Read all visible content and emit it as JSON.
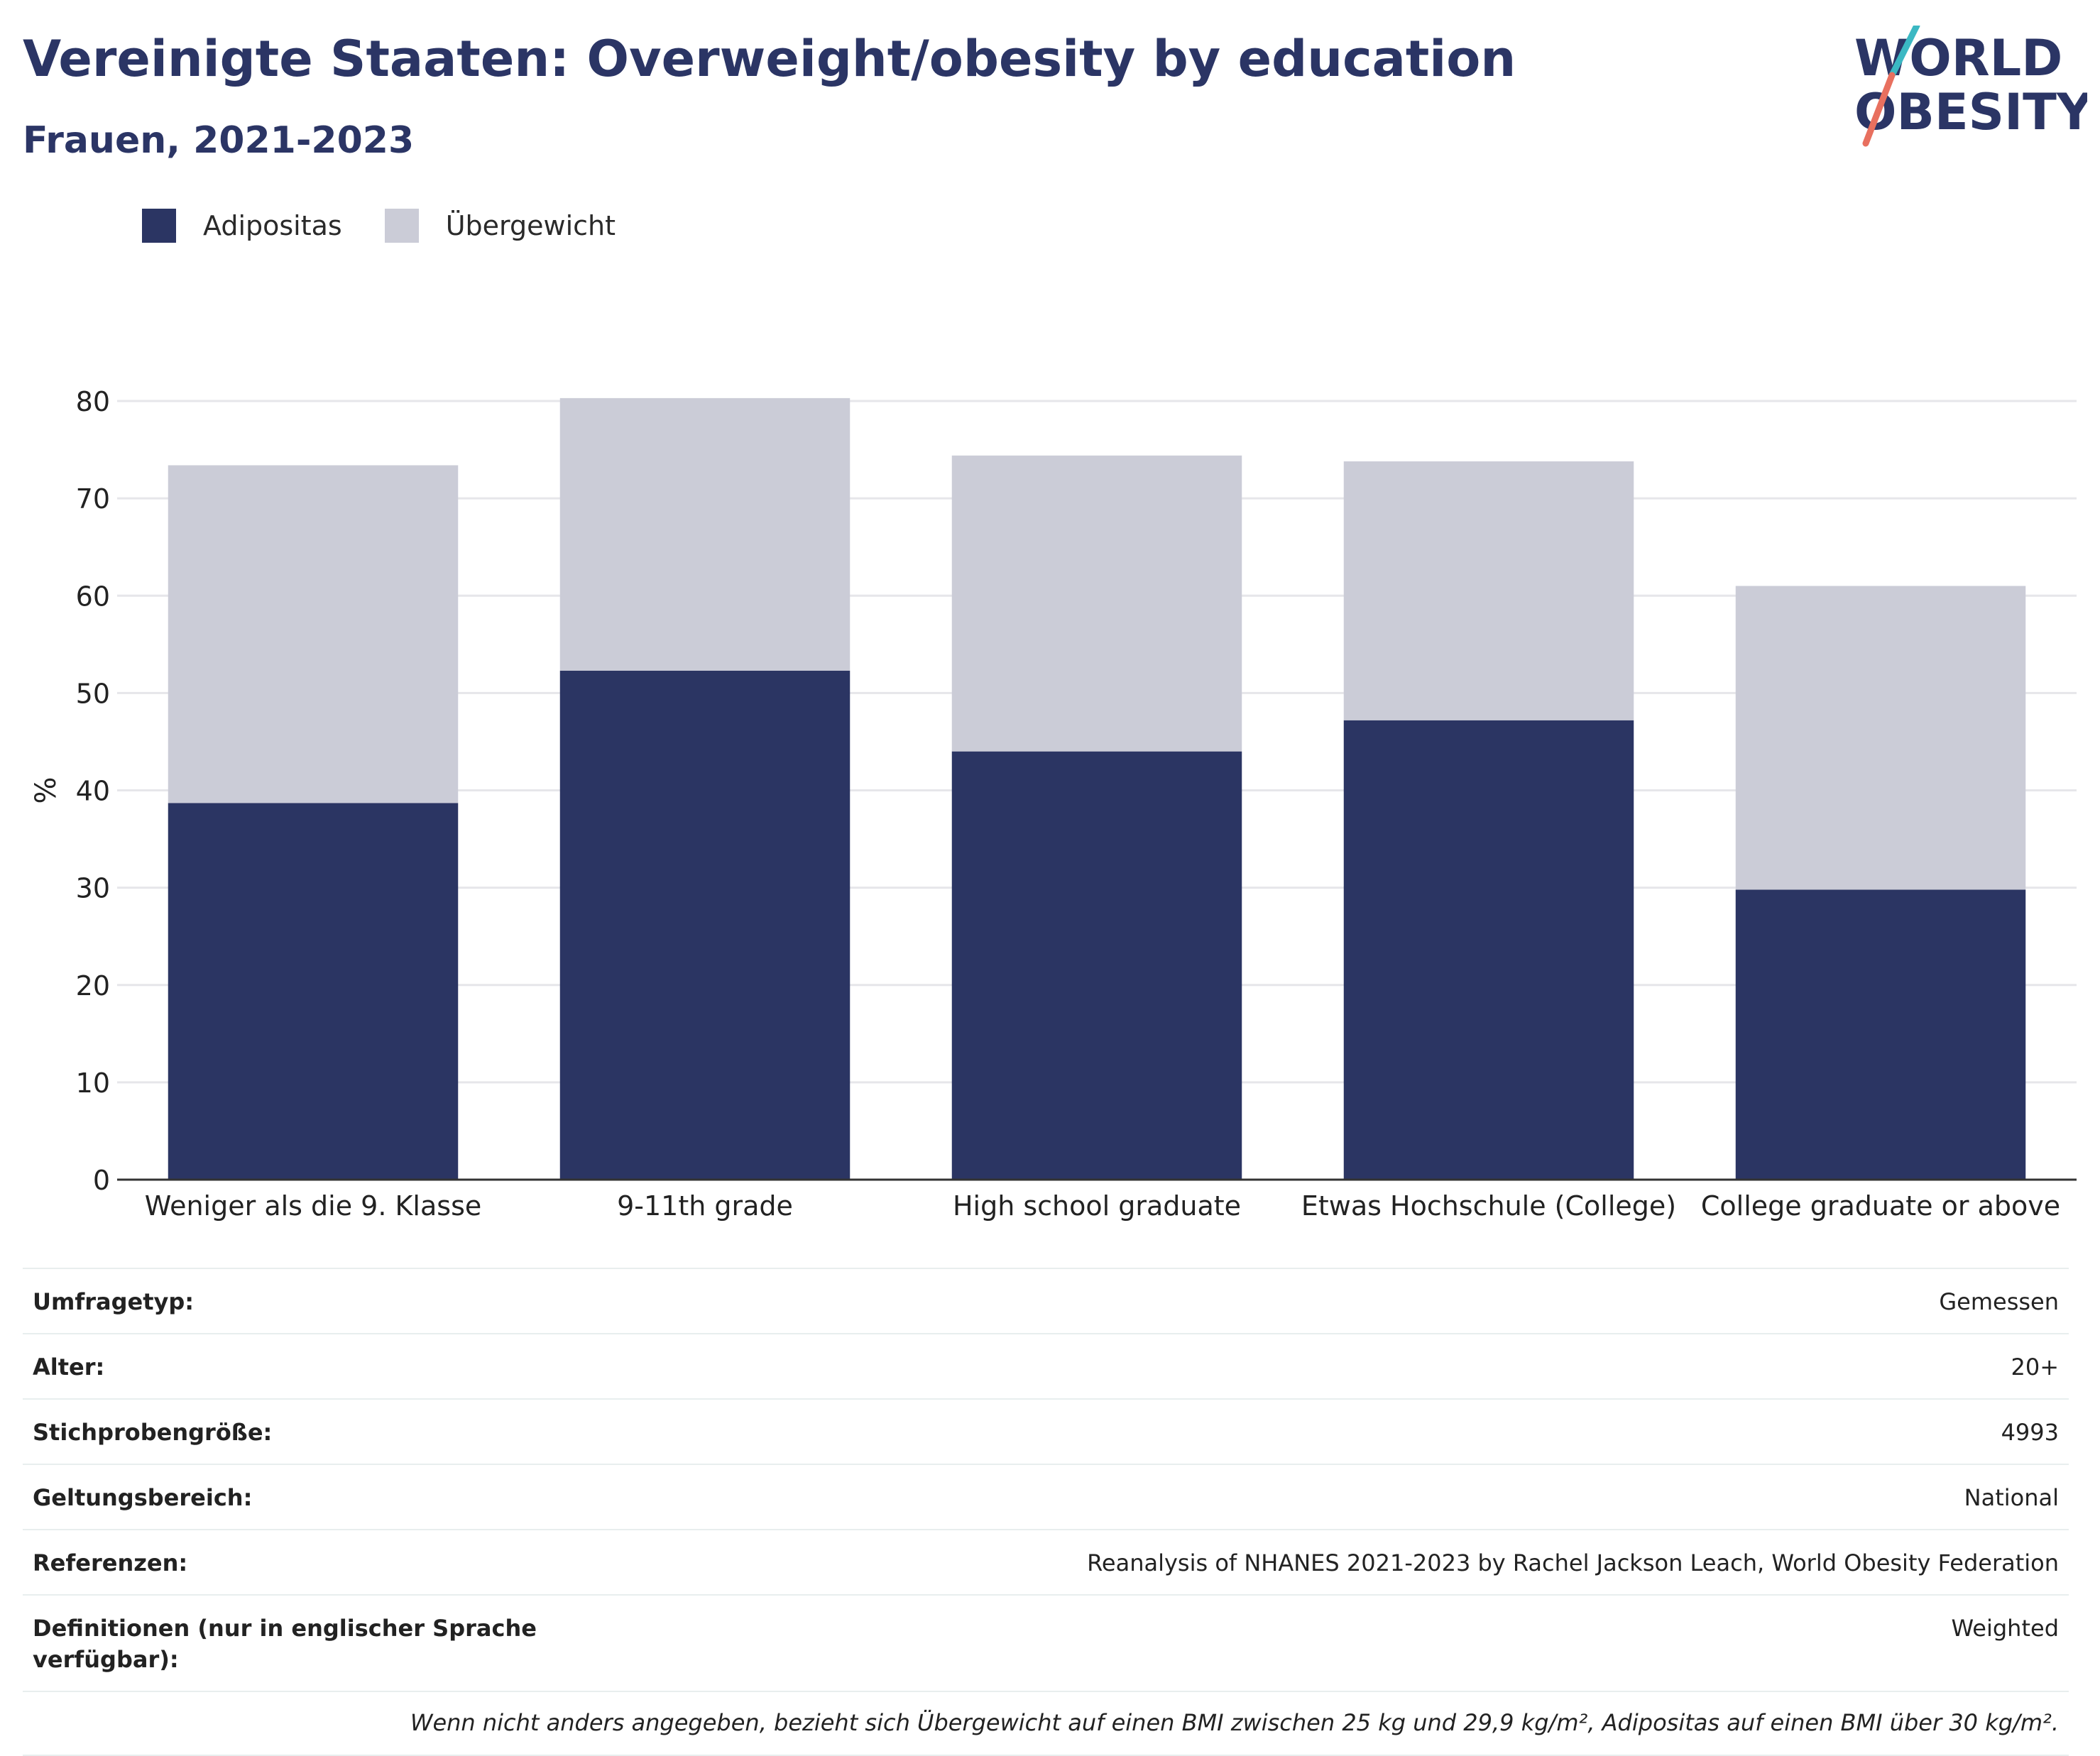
{
  "header": {
    "title": "Vereinigte Staaten: Overweight/obesity by education",
    "subtitle": "Frauen, 2021-2023"
  },
  "logo": {
    "line1": "WORLD",
    "line2": "OBESITY"
  },
  "colors": {
    "obesity": "#2b3563",
    "overweight": "#cbccd7",
    "text": "#2b3565",
    "logo_teal": "#3bb8c3",
    "logo_coral": "#e8705f"
  },
  "chart_data": {
    "type": "bar",
    "stacked": true,
    "categories": [
      "Weniger als die 9. Klasse",
      "9-11th grade",
      "High school graduate",
      "Etwas Hochschule (College)",
      "College graduate or above"
    ],
    "series": [
      {
        "name": "Adipositas",
        "values": [
          38.7,
          52.3,
          44.0,
          47.2,
          29.8
        ]
      },
      {
        "name": "Übergewicht",
        "values": [
          34.7,
          28.0,
          30.4,
          26.6,
          31.2
        ]
      }
    ],
    "ylabel": "%",
    "ylim": [
      0,
      80
    ],
    "yticks": [
      0,
      10,
      20,
      30,
      40,
      50,
      60,
      70,
      80
    ],
    "grid": true,
    "legend": "top-left"
  },
  "meta": [
    {
      "key": "Umfragetyp:",
      "value": "Gemessen"
    },
    {
      "key": "Alter:",
      "value": "20+"
    },
    {
      "key": "Stichprobengröße:",
      "value": "4993"
    },
    {
      "key": "Geltungsbereich:",
      "value": "National"
    },
    {
      "key": "Referenzen:",
      "value": "Reanalysis of NHANES 2021-2023 by Rachel Jackson Leach, World Obesity Federation"
    },
    {
      "key": "Definitionen (nur in englischer Sprache verfügbar):",
      "value": "Weighted"
    }
  ],
  "footnote": "Wenn nicht anders angegeben, bezieht sich Übergewicht auf einen BMI zwischen 25 kg und 29,9 kg/m², Adipositas auf einen BMI über 30 kg/m²."
}
